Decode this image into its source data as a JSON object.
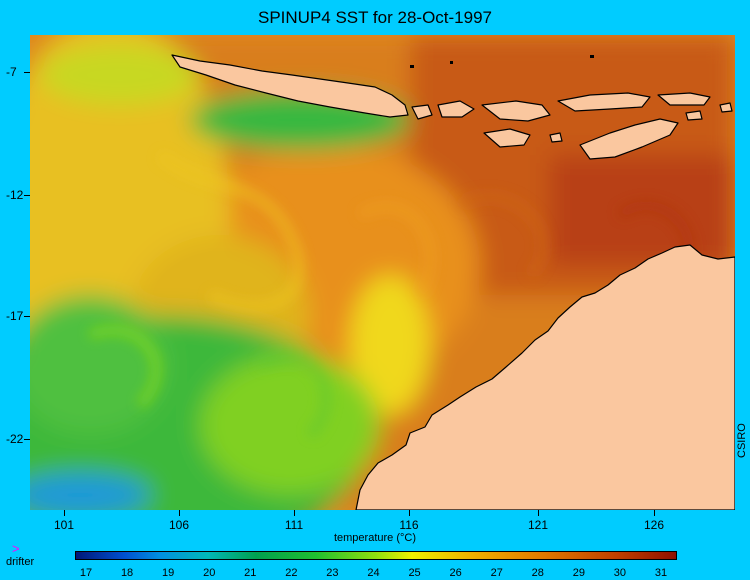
{
  "title": "SPINUP4 SST for 28-Oct-1997",
  "y_axis": {
    "ticks": [
      "-7",
      "-12",
      "-17",
      "-22"
    ]
  },
  "x_axis": {
    "ticks": [
      "101",
      "106",
      "111",
      "116",
      "121",
      "126"
    ]
  },
  "credit": "CSIRO",
  "colorbar": {
    "label": "temperature (°C)",
    "ticks": [
      "17",
      "18",
      "19",
      "20",
      "21",
      "22",
      "23",
      "24",
      "25",
      "26",
      "27",
      "28",
      "29",
      "30",
      "31"
    ],
    "colors": [
      "#001878",
      "#0090E0",
      "#00A050",
      "#90E010",
      "#F0F000",
      "#E07800",
      "#901000"
    ]
  },
  "legend": {
    "marker": ">",
    "label": "drifter",
    "marker_color": "#FF00FF"
  },
  "colors": {
    "background": "#00CCFF",
    "land": "#FAC79F"
  }
}
